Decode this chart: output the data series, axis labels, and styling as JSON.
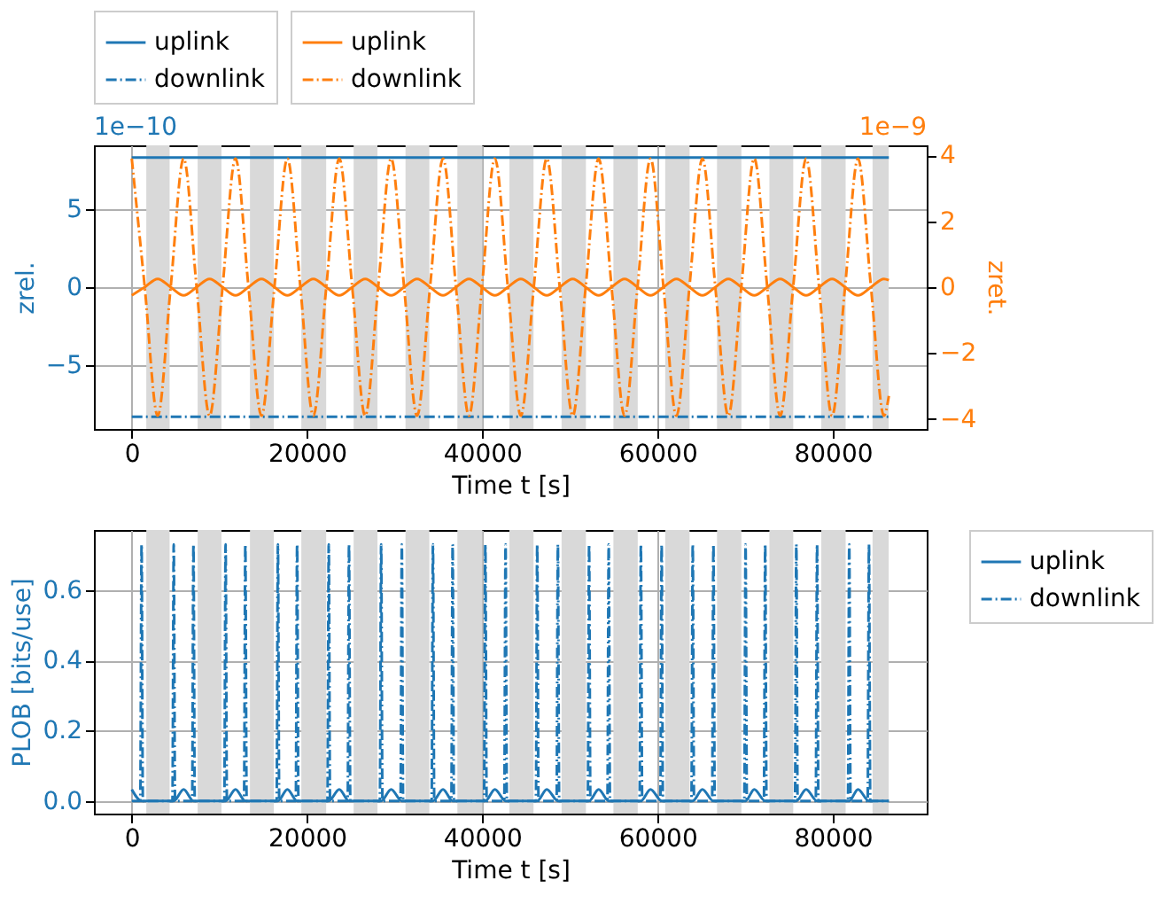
{
  "chart_data": [
    {
      "type": "line",
      "xlabel": "Time t [s]",
      "ylabel": "zrel.",
      "y2label": "zret.",
      "annotations": [
        "1e−10",
        "1e−9"
      ],
      "xlim": [
        -4320,
        90720
      ],
      "xticks": [
        0,
        20000,
        40000,
        60000,
        80000
      ],
      "ylim": [
        -9.08,
        9.08
      ],
      "yticks": [
        {
          "value": -5,
          "label": "−5"
        },
        0,
        5
      ],
      "y2lim": [
        -4.3,
        4.3
      ],
      "y2ticks": [
        {
          "value": -4,
          "label": "−4"
        },
        {
          "value": -2,
          "label": "−2"
        },
        0,
        2,
        4
      ],
      "grid": true,
      "legend": "top",
      "bands": [
        {
          "axis": "x",
          "from": 1660,
          "to": 4320,
          "color": "#d9d9d9"
        },
        {
          "axis": "x",
          "from": 7520,
          "to": 10240,
          "color": "#d9d9d9"
        },
        {
          "axis": "x",
          "from": 13490,
          "to": 16210,
          "color": "#d9d9d9"
        },
        {
          "axis": "x",
          "from": 19350,
          "to": 22190,
          "color": "#d9d9d9"
        },
        {
          "axis": "x",
          "from": 25320,
          "to": 28040,
          "color": "#d9d9d9"
        },
        {
          "axis": "x",
          "from": 31240,
          "to": 33960,
          "color": "#d9d9d9"
        },
        {
          "axis": "x",
          "from": 37160,
          "to": 40000,
          "color": "#d9d9d9"
        },
        {
          "axis": "x",
          "from": 43100,
          "to": 45850,
          "color": "#d9d9d9"
        },
        {
          "axis": "x",
          "from": 49050,
          "to": 51830,
          "color": "#d9d9d9"
        },
        {
          "axis": "x",
          "from": 54970,
          "to": 57740,
          "color": "#d9d9d9"
        },
        {
          "axis": "x",
          "from": 60880,
          "to": 63660,
          "color": "#d9d9d9"
        },
        {
          "axis": "x",
          "from": 66790,
          "to": 69570,
          "color": "#d9d9d9"
        },
        {
          "axis": "x",
          "from": 72770,
          "to": 75490,
          "color": "#d9d9d9"
        },
        {
          "axis": "x",
          "from": 78690,
          "to": 81470,
          "color": "#d9d9d9"
        },
        {
          "axis": "x",
          "from": 84540,
          "to": 86380,
          "color": "#d9d9d9"
        }
      ],
      "series": [
        {
          "name": "uplink",
          "color": "#1f77b4",
          "line_style": "solid",
          "axis": "y",
          "x": [
            0,
            86400
          ],
          "values": [
            8.3,
            8.3
          ]
        },
        {
          "name": "downlink",
          "color": "#1f77b4",
          "line_style": "dashdot",
          "axis": "y",
          "x": [
            0,
            86400
          ],
          "values": [
            -8.3,
            -8.3
          ]
        },
        {
          "name": "uplink",
          "color": "#ff7f0e",
          "line_style": "solid",
          "axis": "y2",
          "x": [
            0,
            1480,
            2960,
            4440,
            5920,
            7400,
            8880,
            10360,
            11840,
            13320,
            14800,
            16280,
            17760,
            19240,
            20720,
            22200,
            23680,
            25160,
            26640,
            28120,
            29600,
            31080,
            32560,
            34040,
            35520,
            37000,
            38480,
            39960,
            41440,
            42920,
            44400,
            45880,
            47360,
            48840,
            50320,
            51800,
            53280,
            54760,
            56240,
            57720,
            59200,
            60680,
            62160,
            63640,
            65120,
            66600,
            68080,
            69560,
            71040,
            72520,
            74000,
            75480,
            76960,
            78440,
            79920,
            81400,
            82880,
            84360,
            85840,
            86400
          ],
          "values": [
            -0.25,
            0,
            0.25,
            0,
            -0.25,
            0,
            0.25,
            0,
            -0.25,
            0,
            0.25,
            0,
            -0.25,
            0,
            0.25,
            0,
            -0.25,
            0,
            0.25,
            0,
            -0.25,
            0,
            0.25,
            0,
            -0.25,
            0,
            0.25,
            0,
            -0.25,
            0,
            0.25,
            0,
            -0.25,
            0,
            0.25,
            0,
            -0.25,
            0,
            0.25,
            0,
            -0.25,
            0,
            0.25,
            0,
            -0.25,
            0,
            0.25,
            0,
            -0.25,
            0,
            0.25,
            0,
            -0.25,
            0,
            0.25,
            0,
            -0.25,
            0,
            0.25,
            0.21
          ]
        },
        {
          "name": "downlink",
          "color": "#ff7f0e",
          "line_style": "dashdot",
          "axis": "y2",
          "x": [
            0,
            1480,
            2960,
            4440,
            5920,
            7400,
            8880,
            10360,
            11840,
            13320,
            14800,
            16280,
            17760,
            19240,
            20720,
            22200,
            23680,
            25160,
            26640,
            28120,
            29600,
            31080,
            32560,
            34040,
            35520,
            37000,
            38480,
            39960,
            41440,
            42920,
            44400,
            45880,
            47360,
            48840,
            50320,
            51800,
            53280,
            54760,
            56240,
            57720,
            59200,
            60680,
            62160,
            63640,
            65120,
            66600,
            68080,
            69560,
            71040,
            72520,
            74000,
            75480,
            76960,
            78440,
            79920,
            81400,
            82880,
            84360,
            85840,
            86400
          ],
          "values": [
            3.9,
            0,
            -3.9,
            0,
            3.9,
            0,
            -3.9,
            0,
            3.9,
            0,
            -3.9,
            0,
            3.9,
            0,
            -3.9,
            0,
            3.9,
            0,
            -3.9,
            0,
            3.9,
            0,
            -3.9,
            0,
            3.9,
            0,
            -3.9,
            0,
            3.9,
            0,
            -3.9,
            0,
            3.9,
            0,
            -3.9,
            0,
            3.9,
            0,
            -3.9,
            0,
            3.9,
            0,
            -3.9,
            0,
            3.9,
            0,
            -3.9,
            0,
            3.9,
            0,
            -3.9,
            0,
            3.9,
            0,
            -3.9,
            0,
            3.9,
            0,
            -3.9,
            -3.3
          ]
        }
      ]
    },
    {
      "type": "line",
      "xlabel": "Time t [s]",
      "ylabel": "PLOB [bits/use]",
      "xlim": [
        -4320,
        90720
      ],
      "xticks": [
        0,
        20000,
        40000,
        60000,
        80000
      ],
      "ylim": [
        -0.036,
        0.771
      ],
      "yticks": [
        {
          "value": 0,
          "label": "0.0"
        },
        0.2,
        0.4,
        0.6
      ],
      "grid": true,
      "legend": "right",
      "bands": [
        {
          "axis": "x",
          "from": 1660,
          "to": 4320,
          "color": "#d9d9d9"
        },
        {
          "axis": "x",
          "from": 7520,
          "to": 10240,
          "color": "#d9d9d9"
        },
        {
          "axis": "x",
          "from": 13490,
          "to": 16210,
          "color": "#d9d9d9"
        },
        {
          "axis": "x",
          "from": 19350,
          "to": 22190,
          "color": "#d9d9d9"
        },
        {
          "axis": "x",
          "from": 25320,
          "to": 28040,
          "color": "#d9d9d9"
        },
        {
          "axis": "x",
          "from": 31240,
          "to": 33960,
          "color": "#d9d9d9"
        },
        {
          "axis": "x",
          "from": 37160,
          "to": 40000,
          "color": "#d9d9d9"
        },
        {
          "axis": "x",
          "from": 43100,
          "to": 45850,
          "color": "#d9d9d9"
        },
        {
          "axis": "x",
          "from": 49050,
          "to": 51830,
          "color": "#d9d9d9"
        },
        {
          "axis": "x",
          "from": 54970,
          "to": 57740,
          "color": "#d9d9d9"
        },
        {
          "axis": "x",
          "from": 60880,
          "to": 63660,
          "color": "#d9d9d9"
        },
        {
          "axis": "x",
          "from": 66790,
          "to": 69570,
          "color": "#d9d9d9"
        },
        {
          "axis": "x",
          "from": 72770,
          "to": 75490,
          "color": "#d9d9d9"
        },
        {
          "axis": "x",
          "from": 78690,
          "to": 81470,
          "color": "#d9d9d9"
        },
        {
          "axis": "x",
          "from": 84540,
          "to": 86380,
          "color": "#d9d9d9"
        }
      ],
      "series": [
        {
          "name": "uplink",
          "color": "#1f77b4",
          "line_style": "solid",
          "x": [
            0,
            1120,
            4790,
            5920,
            7040,
            10710,
            11840,
            12960,
            16680,
            17760,
            18870,
            22480,
            23680,
            24790,
            28460,
            29600,
            30820,
            34370,
            35520,
            36620,
            40350,
            41440,
            42660,
            46270,
            47360,
            48630,
            52190,
            53280,
            54430,
            58100,
            59200,
            60470,
            64020,
            65120,
            66380,
            70050,
            71040,
            72290,
            75840,
            76960,
            78210,
            81880,
            82880,
            84130,
            86400
          ],
          "values": [
            0.033,
            0,
            0,
            0.033,
            0,
            0,
            0.033,
            0,
            0,
            0.033,
            0,
            0,
            0.033,
            0,
            0,
            0.033,
            0,
            0,
            0.033,
            0,
            0,
            0.033,
            0,
            0,
            0.033,
            0,
            0,
            0.033,
            0,
            0,
            0.033,
            0,
            0,
            0.033,
            0,
            0,
            0.033,
            0,
            0,
            0.033,
            0,
            0,
            0.033,
            0,
            0
          ]
        },
        {
          "name": "downlink",
          "color": "#1f77b4",
          "line_style": "dashdot",
          "x": [
            0,
            970,
            1120,
            1270,
            4640,
            4790,
            4940,
            6890,
            7040,
            7190,
            10560,
            10710,
            10860,
            12810,
            12960,
            13110,
            16530,
            16680,
            16830,
            18720,
            18870,
            19020,
            22330,
            22480,
            22630,
            24640,
            24790,
            24940,
            28310,
            28460,
            28610,
            30670,
            30820,
            30970,
            34220,
            34370,
            34520,
            36470,
            36620,
            36770,
            40200,
            40350,
            40500,
            42510,
            42660,
            42810,
            46120,
            46270,
            46420,
            48480,
            48630,
            48780,
            52040,
            52190,
            52340,
            54280,
            54430,
            54580,
            57950,
            58100,
            58250,
            60320,
            60470,
            60620,
            63870,
            64020,
            64170,
            66230,
            66380,
            66530,
            69900,
            70050,
            70200,
            72140,
            72290,
            72440,
            75690,
            75840,
            75990,
            78060,
            78210,
            78360,
            81730,
            81880,
            82030,
            83980,
            84130,
            84280,
            86400
          ],
          "values": [
            0,
            0,
            0.73,
            0,
            0,
            0.73,
            0,
            0,
            0.73,
            0,
            0,
            0.73,
            0,
            0,
            0.73,
            0,
            0,
            0.73,
            0,
            0,
            0.73,
            0,
            0,
            0.73,
            0,
            0,
            0.73,
            0,
            0,
            0.73,
            0,
            0,
            0.73,
            0,
            0,
            0.73,
            0,
            0,
            0.73,
            0,
            0,
            0.73,
            0,
            0,
            0.73,
            0,
            0,
            0.73,
            0,
            0,
            0.73,
            0,
            0,
            0.73,
            0,
            0,
            0.73,
            0,
            0,
            0.73,
            0,
            0,
            0.73,
            0,
            0,
            0.73,
            0,
            0,
            0.73,
            0,
            0,
            0.73,
            0,
            0,
            0.73,
            0,
            0,
            0.73,
            0,
            0,
            0.73,
            0,
            0,
            0.73,
            0,
            0,
            0.73,
            0,
            0
          ]
        }
      ]
    }
  ]
}
